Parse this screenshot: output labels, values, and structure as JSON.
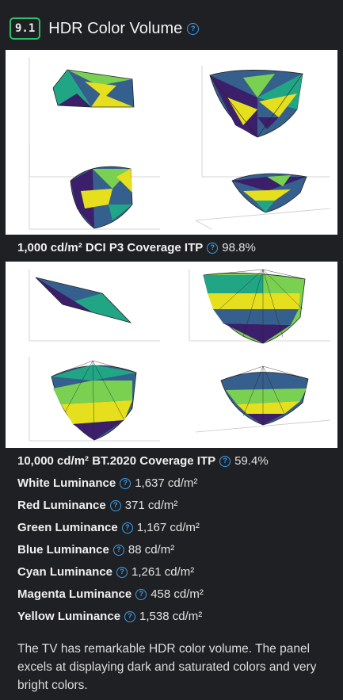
{
  "section": {
    "number": "9.1",
    "title": "HDR Color Volume"
  },
  "measurements": [
    {
      "label": "1,000 cd/m² DCI P3 Coverage ITP",
      "value": "98.8%"
    },
    {
      "label": "10,000 cd/m² BT.2020 Coverage ITP",
      "value": "59.4%"
    },
    {
      "label": "White Luminance",
      "value": "1,637 cd/m²"
    },
    {
      "label": "Red Luminance",
      "value": "371 cd/m²"
    },
    {
      "label": "Green Luminance",
      "value": "1,167 cd/m²"
    },
    {
      "label": "Blue Luminance",
      "value": "88 cd/m²"
    },
    {
      "label": "Cyan Luminance",
      "value": "1,261 cd/m²"
    },
    {
      "label": "Magenta Luminance",
      "value": "458 cd/m²"
    },
    {
      "label": "Yellow Luminance",
      "value": "1,538 cd/m²"
    }
  ],
  "description": "The TV has remarkable HDR color volume. The panel excels at displaying dark and saturated colors and very bright colors.",
  "colors": {
    "background": "#1f2023",
    "badge_border": "#2fbf6a",
    "help_icon": "#3b9ce8",
    "plot_dark": "#3b1f6b",
    "plot_blue": "#35608d",
    "plot_teal": "#21a685",
    "plot_green": "#7ad151",
    "plot_yellow": "#e6df1e"
  }
}
